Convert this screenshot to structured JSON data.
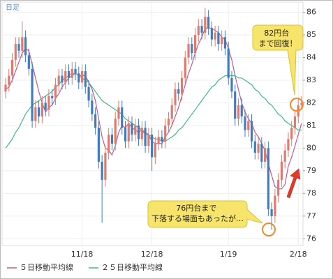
{
  "chart_data": {
    "type": "candlestick",
    "timeframe": "日足",
    "categories": [
      null,
      null,
      null,
      null,
      null,
      null,
      null,
      null,
      null,
      null,
      null,
      null,
      null,
      null,
      null,
      null,
      null,
      null,
      null,
      null,
      null,
      null,
      null,
      "11/18",
      null,
      null,
      null,
      null,
      null,
      null,
      null,
      null,
      null,
      null,
      null,
      null,
      null,
      null,
      null,
      null,
      null,
      null,
      null,
      null,
      "12/18",
      null,
      null,
      null,
      null,
      null,
      null,
      null,
      null,
      null,
      null,
      null,
      null,
      null,
      null,
      null,
      null,
      null,
      null,
      null,
      null,
      null,
      null,
      "1/19",
      null,
      null,
      null,
      null,
      null,
      null,
      null,
      null,
      null,
      null,
      null,
      null,
      null,
      null,
      null,
      null,
      null,
      null,
      null,
      null,
      "2/18",
      null
    ],
    "open": [
      82.5,
      82.8,
      83.2,
      83.9,
      84.6,
      84.3,
      84.9,
      84.1,
      83.5,
      81.2,
      81.8,
      81.4,
      82.0,
      81.7,
      82.3,
      82.2,
      82.8,
      83.2,
      82.9,
      83.4,
      83.1,
      83.5,
      83.3,
      82.9,
      83.4,
      82.7,
      82.1,
      81.5,
      80.9,
      79.4,
      78.6,
      79.8,
      80.6,
      80.2,
      81.3,
      81.8,
      80.9,
      80.3,
      81.1,
      80.6,
      81.0,
      80.4,
      80.9,
      80.1,
      80.6,
      79.6,
      80.2,
      80.5,
      80.3,
      81.0,
      81.3,
      81.9,
      82.6,
      82.4,
      83.1,
      84.0,
      84.6,
      84.2,
      85.0,
      85.4,
      85.1,
      85.8,
      85.3,
      84.8,
      85.1,
      84.6,
      84.9,
      84.4,
      83.1,
      82.5,
      81.3,
      81.9,
      81.4,
      80.8,
      81.2,
      80.3,
      79.8,
      80.2,
      79.4,
      80.0,
      77.3,
      77.0,
      77.9,
      78.6,
      79.4,
      79.9,
      80.4,
      80.9,
      81.4,
      81.9
    ],
    "high": [
      83.1,
      83.5,
      84.2,
      84.9,
      84.9,
      85.6,
      85.2,
      84.4,
      83.8,
      82.1,
      82.1,
      82.3,
      82.3,
      82.6,
      82.6,
      83.1,
      83.5,
      83.5,
      83.7,
      83.7,
      83.8,
      83.8,
      83.6,
      83.7,
      83.7,
      83.0,
      82.4,
      81.8,
      81.2,
      79.7,
      80.1,
      80.9,
      80.9,
      81.6,
      82.1,
      82.1,
      81.2,
      81.4,
      81.4,
      81.3,
      81.3,
      81.2,
      81.2,
      80.9,
      80.9,
      80.5,
      80.8,
      80.8,
      81.3,
      81.6,
      82.2,
      82.9,
      82.9,
      83.4,
      84.3,
      84.9,
      84.9,
      85.3,
      85.7,
      85.7,
      86.2,
      86.1,
      85.6,
      85.4,
      85.4,
      85.2,
      85.2,
      84.7,
      83.4,
      82.8,
      82.2,
      82.2,
      81.7,
      81.5,
      81.5,
      80.6,
      80.5,
      80.5,
      80.3,
      80.3,
      77.6,
      78.2,
      78.9,
      79.7,
      80.2,
      80.7,
      81.2,
      81.7,
      82.2,
      82.3
    ],
    "low": [
      82.2,
      82.5,
      82.9,
      83.6,
      84.0,
      84.0,
      83.8,
      83.2,
      80.9,
      80.9,
      81.1,
      81.1,
      81.4,
      81.4,
      81.9,
      81.9,
      82.5,
      82.6,
      82.6,
      82.8,
      82.8,
      83.0,
      82.6,
      82.6,
      82.4,
      81.8,
      81.2,
      80.6,
      79.1,
      76.7,
      78.3,
      79.5,
      79.9,
      79.9,
      81.0,
      80.6,
      80.0,
      80.0,
      80.3,
      80.3,
      80.1,
      80.1,
      79.8,
      79.8,
      79.0,
      79.3,
      79.9,
      80.0,
      80.0,
      80.7,
      81.0,
      81.6,
      82.1,
      82.1,
      82.8,
      83.7,
      83.9,
      83.9,
      84.7,
      84.8,
      84.8,
      85.0,
      84.5,
      84.5,
      84.3,
      84.3,
      84.1,
      82.8,
      82.2,
      81.0,
      81.0,
      81.1,
      80.5,
      80.5,
      80.0,
      79.5,
      79.5,
      79.1,
      79.1,
      77.0,
      76.4,
      76.7,
      77.6,
      78.3,
      79.1,
      79.6,
      80.1,
      80.6,
      81.1,
      81.7
    ],
    "close": [
      82.8,
      83.2,
      83.9,
      84.6,
      84.3,
      84.9,
      84.1,
      83.5,
      81.2,
      81.8,
      81.4,
      82.0,
      81.7,
      82.3,
      82.2,
      82.8,
      83.2,
      82.9,
      83.4,
      83.1,
      83.5,
      83.3,
      82.9,
      83.4,
      82.7,
      82.1,
      81.5,
      80.9,
      79.4,
      78.6,
      79.8,
      80.6,
      80.2,
      81.3,
      81.8,
      80.9,
      80.3,
      81.1,
      80.6,
      81.0,
      80.4,
      80.9,
      80.1,
      80.6,
      79.6,
      80.2,
      80.5,
      80.3,
      81.0,
      81.3,
      81.9,
      82.6,
      82.4,
      83.1,
      84.0,
      84.6,
      84.2,
      85.0,
      85.4,
      85.1,
      85.8,
      85.3,
      84.8,
      85.1,
      84.6,
      84.9,
      84.4,
      83.1,
      82.5,
      81.3,
      81.9,
      81.4,
      80.8,
      81.2,
      80.3,
      79.8,
      80.2,
      79.4,
      80.0,
      77.3,
      77.0,
      77.9,
      78.6,
      79.4,
      79.9,
      80.4,
      80.9,
      81.4,
      81.9,
      82.0
    ],
    "up_color": "#e07a6e",
    "down_color": "#3f7cc0",
    "series": [
      {
        "name": "５日移動平均線",
        "color": "#c05a96",
        "values": [
          82.6,
          82.7,
          83.0,
          83.4,
          83.8,
          84.2,
          84.4,
          84.3,
          83.7,
          83.1,
          82.5,
          82.0,
          81.6,
          81.8,
          81.9,
          82.2,
          82.4,
          82.7,
          82.9,
          83.1,
          83.2,
          83.3,
          83.2,
          83.2,
          83.2,
          82.9,
          82.6,
          82.1,
          81.3,
          80.5,
          80.0,
          79.9,
          79.7,
          80.1,
          80.7,
          81.0,
          80.9,
          81.1,
          80.9,
          80.8,
          80.7,
          80.8,
          80.6,
          80.6,
          80.3,
          80.2,
          80.2,
          80.2,
          80.5,
          80.7,
          81.0,
          81.4,
          81.8,
          82.3,
          82.8,
          83.3,
          83.7,
          84.2,
          84.6,
          84.9,
          85.3,
          85.3,
          85.3,
          85.2,
          85.1,
          84.9,
          84.8,
          84.4,
          83.9,
          83.2,
          82.6,
          82.0,
          81.6,
          81.3,
          81.1,
          80.7,
          80.5,
          80.2,
          79.9,
          79.3,
          78.8,
          78.3,
          78.2,
          78.2,
          78.4,
          79.2,
          79.6,
          80.1,
          80.6,
          81.1
        ]
      },
      {
        "name": "２５日移動平均線",
        "color": "#3db88a",
        "values": [
          80.0,
          80.2,
          80.4,
          80.7,
          80.9,
          81.2,
          81.5,
          81.7,
          81.9,
          82.0,
          82.1,
          82.2,
          82.3,
          82.4,
          82.5,
          82.7,
          82.8,
          83.0,
          83.1,
          83.2,
          83.3,
          83.3,
          83.2,
          83.1,
          83.0,
          82.9,
          82.7,
          82.5,
          82.3,
          82.1,
          82.0,
          81.9,
          81.8,
          81.7,
          81.6,
          81.5,
          81.3,
          81.2,
          81.1,
          81.0,
          80.9,
          80.8,
          80.7,
          80.6,
          80.5,
          80.4,
          80.4,
          80.3,
          80.3,
          80.4,
          80.5,
          80.6,
          80.8,
          80.9,
          81.1,
          81.3,
          81.5,
          81.7,
          81.9,
          82.1,
          82.3,
          82.5,
          82.7,
          82.8,
          83.0,
          83.1,
          83.2,
          83.2,
          83.2,
          83.2,
          83.1,
          83.1,
          83.0,
          82.9,
          82.8,
          82.6,
          82.5,
          82.3,
          82.2,
          82.0,
          81.9,
          81.7,
          81.5,
          81.4,
          81.2,
          81.1,
          81.0,
          80.9,
          80.8,
          80.8
        ]
      }
    ],
    "ylim": [
      75.7,
      86.45
    ],
    "yticks": [
      76,
      77,
      78,
      79,
      80,
      81,
      82,
      83,
      84,
      85,
      86
    ],
    "grid": true,
    "annotations": [
      {
        "lines": [
          "82円台",
          "まで回復！"
        ]
      },
      {
        "lines": [
          "76円台まで",
          "下落する場面もあったが…"
        ]
      }
    ]
  }
}
